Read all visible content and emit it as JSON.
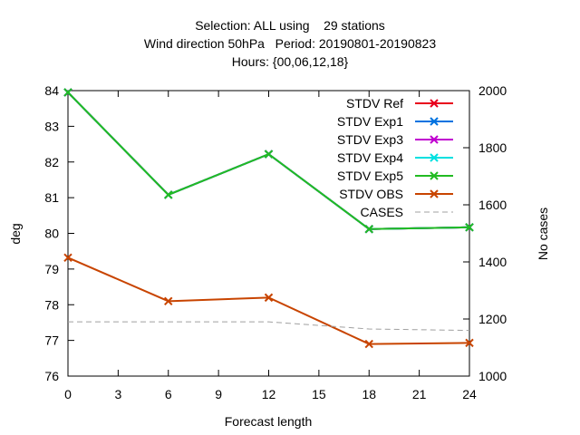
{
  "chart_data": {
    "type": "line",
    "title_lines": [
      "Selection: ALL using    29 stations",
      "Wind direction 50hPa   Period: 20190801-20190823",
      "Hours: {00,06,12,18}"
    ],
    "xlabel": "Forecast length",
    "ylabel": "deg",
    "y2label": "No cases",
    "xlim": [
      0,
      24
    ],
    "ylim": [
      76,
      84
    ],
    "y2lim": [
      1000,
      2000
    ],
    "xticks": [
      0,
      3,
      6,
      9,
      12,
      15,
      18,
      21,
      24
    ],
    "yticks": [
      76,
      77,
      78,
      79,
      80,
      81,
      82,
      83,
      84
    ],
    "y2ticks": [
      1000,
      1200,
      1400,
      1600,
      1800,
      2000
    ],
    "grid": false,
    "legend_position": "top-right",
    "x": [
      0,
      6,
      12,
      18,
      24
    ],
    "series": [
      {
        "name": "STDV Ref",
        "color": "#e8001c",
        "values": [
          83.95,
          81.08,
          82.22,
          80.12,
          80.17
        ],
        "axis": "y",
        "marker": "x"
      },
      {
        "name": "STDV Exp1",
        "color": "#0072e0",
        "values": [
          83.95,
          81.08,
          82.22,
          80.12,
          80.17
        ],
        "axis": "y",
        "marker": "x"
      },
      {
        "name": "STDV Exp3",
        "color": "#c000d0",
        "values": [
          83.95,
          81.08,
          82.22,
          80.12,
          80.17
        ],
        "axis": "y",
        "marker": "x"
      },
      {
        "name": "STDV Exp4",
        "color": "#00e0e0",
        "values": [
          83.95,
          81.08,
          82.22,
          80.12,
          80.17
        ],
        "axis": "y",
        "marker": "x"
      },
      {
        "name": "STDV Exp5",
        "color": "#22bb22",
        "values": [
          83.95,
          81.08,
          82.22,
          80.12,
          80.17
        ],
        "axis": "y",
        "marker": "x"
      },
      {
        "name": "STDV OBS",
        "color": "#c84400",
        "values": [
          79.32,
          78.1,
          78.2,
          76.9,
          76.93
        ],
        "axis": "y",
        "marker": "x"
      },
      {
        "name": "CASES",
        "color": "#a0a0a0",
        "values": [
          1190,
          1190,
          1190,
          1165,
          1160
        ],
        "axis": "y2",
        "marker": "none",
        "dashed": true
      }
    ]
  }
}
